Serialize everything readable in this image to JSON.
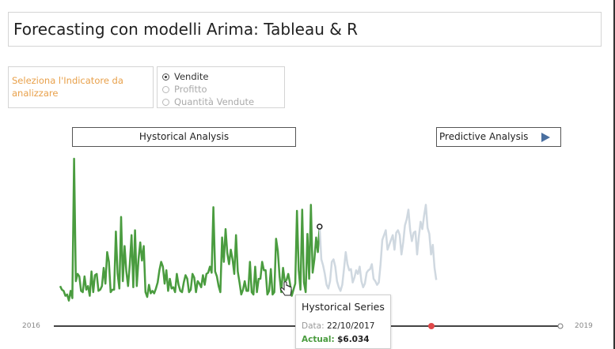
{
  "title": "Forecasting con modelli Arima: Tableau & R",
  "selector": {
    "prompt": "Seleziona l'Indicatore da analizzare",
    "options": [
      {
        "label": "Vendite",
        "selected": true
      },
      {
        "label": "Profitto",
        "selected": false
      },
      {
        "label": "Quantità Vendute",
        "selected": false
      }
    ]
  },
  "buttons": {
    "historical": "Hystorical Analysis",
    "predictive": "Predictive Analysis"
  },
  "timeline": {
    "start_label": "2016",
    "end_label": "2019"
  },
  "tooltip": {
    "title": "Hystorical Series",
    "date_label": "Data:",
    "date_value": "22/10/2017",
    "actual_label": "Actual:",
    "actual_value": "$6.034"
  },
  "colors": {
    "historical_line": "#4a9c3f",
    "forecast_line": "#cfd8e0",
    "timeline_marker": "#e0484a",
    "prompt_text": "#e8a04a",
    "predict_arrow": "#4a6fa0"
  },
  "chart_data": {
    "type": "line",
    "x_range": [
      "2016",
      "2019"
    ],
    "series": [
      {
        "role": "historical",
        "values": [
          2000,
          1700,
          1600,
          1200,
          1300,
          800,
          1600,
          1000,
          12500,
          2400,
          3000,
          2800,
          1600,
          1500,
          2800,
          1700,
          2000,
          1200,
          3200,
          1500,
          2900,
          3000,
          1600,
          1700,
          2000,
          3500,
          2200,
          4800,
          4000,
          1500,
          1700,
          1700,
          6500,
          3000,
          1800,
          7700,
          2400,
          5300,
          3200,
          2000,
          3800,
          6200,
          1900,
          6600,
          2000,
          4200,
          5600,
          4100,
          5300,
          1500,
          1100,
          2100,
          1400,
          1600,
          1400,
          1800,
          2300,
          3300,
          4000,
          3600,
          2200,
          3300,
          1600,
          2600,
          1800,
          1900,
          1500,
          3000,
          2100,
          1600,
          1500,
          2300,
          2900,
          2600,
          1500,
          1700,
          3000,
          2700,
          1500,
          2400,
          2200,
          1900,
          2900,
          2100,
          3000,
          3100,
          3600,
          3100,
          8500,
          3200,
          2800,
          2000,
          1500,
          6000,
          4000,
          6700,
          4700,
          3800,
          5000,
          4200,
          3000,
          6200,
          3200,
          2300,
          1300,
          1700,
          2400,
          1600,
          1600,
          4000,
          1500,
          1300,
          3600,
          1500,
          2600,
          2600,
          4000,
          3300,
          3300,
          1300,
          1600,
          3400,
          1300,
          1500,
          5900,
          4900,
          2800,
          1500,
          3500,
          2400,
          2500,
          3000,
          2200,
          1200,
          1700,
          2200,
          8200,
          3300,
          1700,
          8300,
          2300,
          1500,
          6300,
          2600,
          8700,
          3100,
          4200,
          6000,
          4800,
          6900
        ]
      },
      {
        "role": "forecast",
        "values": [
          6900,
          4200,
          3700,
          3000,
          2100,
          1800,
          2400,
          4000,
          4200,
          3600,
          2400,
          1900,
          1600,
          2100,
          3400,
          4800,
          3800,
          3300,
          3400,
          2300,
          2700,
          3300,
          3000,
          3600,
          2400,
          1900,
          2200,
          3100,
          3300,
          3400,
          3800,
          2600,
          2400,
          2100,
          2300,
          3800,
          5800,
          6200,
          6600,
          5000,
          5400,
          5800,
          6200,
          5000,
          6400,
          6600,
          6200,
          4600,
          5600,
          7000,
          7500,
          8300,
          6600,
          5700,
          6400,
          6500,
          4600,
          6100,
          7300,
          6700,
          7800,
          8700,
          6800,
          6300,
          4600,
          5400,
          3500,
          2500
        ]
      }
    ],
    "highlight": {
      "date": "22/10/2017",
      "value": 6034
    }
  }
}
